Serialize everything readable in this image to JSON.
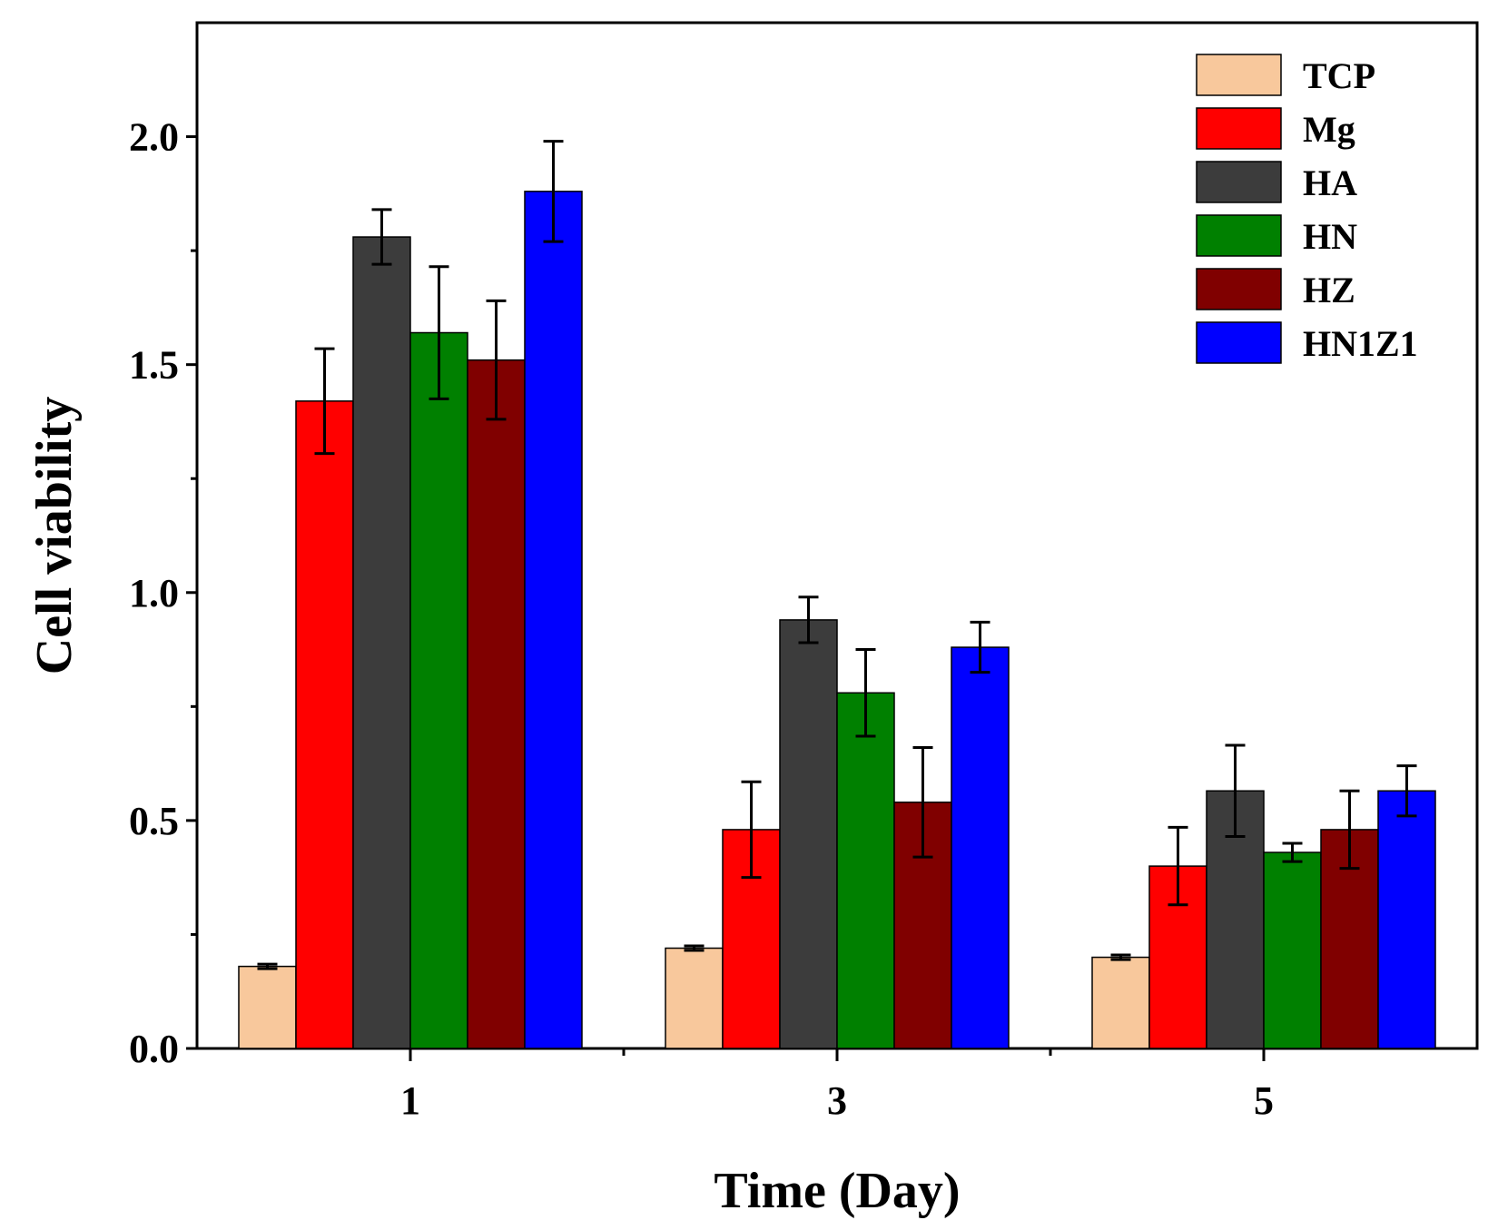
{
  "chart_data": {
    "type": "bar",
    "xlabel": "Time (Day)",
    "ylabel": "Cell viability",
    "categories": [
      "1",
      "3",
      "5"
    ],
    "ylim": [
      0,
      2.25
    ],
    "yticks": [
      "0.0",
      "0.5",
      "1.0",
      "1.5",
      "2.0"
    ],
    "yticks_values": [
      0,
      0.5,
      1.0,
      1.5,
      2.0
    ],
    "grid": false,
    "legend_position": "top-right",
    "series": [
      {
        "name": "TCP",
        "color": "#F8C89C",
        "values": [
          0.18,
          0.22,
          0.2
        ],
        "errors": [
          0.005,
          0.005,
          0.005
        ]
      },
      {
        "name": "Mg",
        "color": "#FF0000",
        "values": [
          1.42,
          0.48,
          0.4
        ],
        "errors": [
          0.115,
          0.105,
          0.085
        ]
      },
      {
        "name": "HA",
        "color": "#3C3C3C",
        "values": [
          1.78,
          0.94,
          0.565
        ],
        "errors": [
          0.06,
          0.05,
          0.1
        ]
      },
      {
        "name": "HN",
        "color": "#008000",
        "values": [
          1.57,
          0.78,
          0.43
        ],
        "errors": [
          0.145,
          0.095,
          0.02
        ]
      },
      {
        "name": "HZ",
        "color": "#800000",
        "values": [
          1.51,
          0.54,
          0.48
        ],
        "errors": [
          0.13,
          0.12,
          0.085
        ]
      },
      {
        "name": "HN1Z1",
        "color": "#0000FF",
        "values": [
          1.88,
          0.88,
          0.565
        ],
        "errors": [
          0.11,
          0.055,
          0.055
        ]
      }
    ]
  }
}
